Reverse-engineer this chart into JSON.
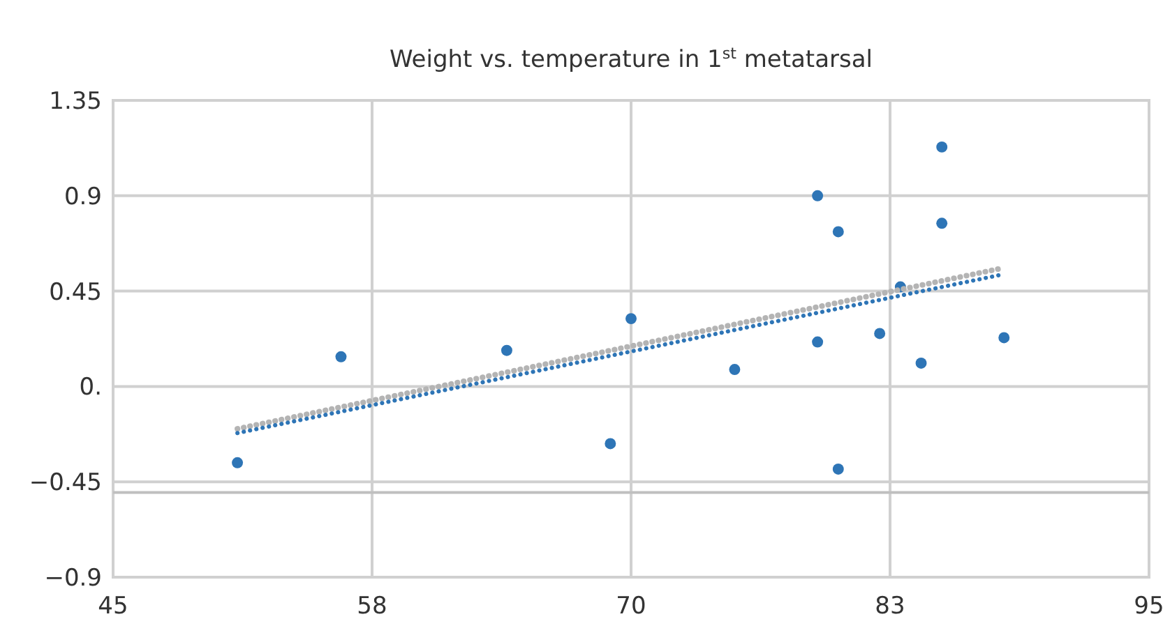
{
  "chart_data": {
    "type": "scatter",
    "title": "Weight vs. temperature in 1$^{st}$ metatarsal",
    "xlim": [
      45,
      95
    ],
    "xticks": [
      45,
      {
        "value": 57.5,
        "label": "58"
      },
      70,
      {
        "value": 82.5,
        "label": "83"
      },
      95
    ],
    "ylim": [
      -0.9,
      1.35
    ],
    "yticks": [
      {
        "value": -0.9,
        "label": "−0.9"
      },
      {
        "value": -0.45,
        "label": "−0.45"
      },
      {
        "value": 0,
        "label": "0."
      },
      0.45,
      0.9,
      1.35
    ],
    "grid": true,
    "marker": "circle",
    "ref_lines": [
      {
        "axis": "y",
        "value": -0.5,
        "color": "#bfbfbf"
      }
    ],
    "series": [
      {
        "color": "#2e75b6",
        "x": [
          51,
          56,
          64,
          69,
          70,
          75,
          79,
          79,
          80,
          80,
          82,
          83,
          84,
          85,
          85,
          88
        ],
        "values": [
          -0.36,
          0.14,
          0.17,
          -0.27,
          0.32,
          0.08,
          0.9,
          0.21,
          0.73,
          -0.39,
          0.25,
          0.47,
          0.11,
          1.13,
          0.77,
          0.23
        ]
      },
      {
        "type": "line",
        "color": "#b4b4b4",
        "line_style": "dotted",
        "marker": "none",
        "x": [
          51,
          88
        ],
        "values": [
          -0.2,
          0.56
        ]
      },
      {
        "type": "line",
        "color": "#2e75b6",
        "line_style": "dotted",
        "marker": "none",
        "x": [
          51,
          88
        ],
        "values": [
          -0.22,
          0.53
        ]
      }
    ]
  }
}
